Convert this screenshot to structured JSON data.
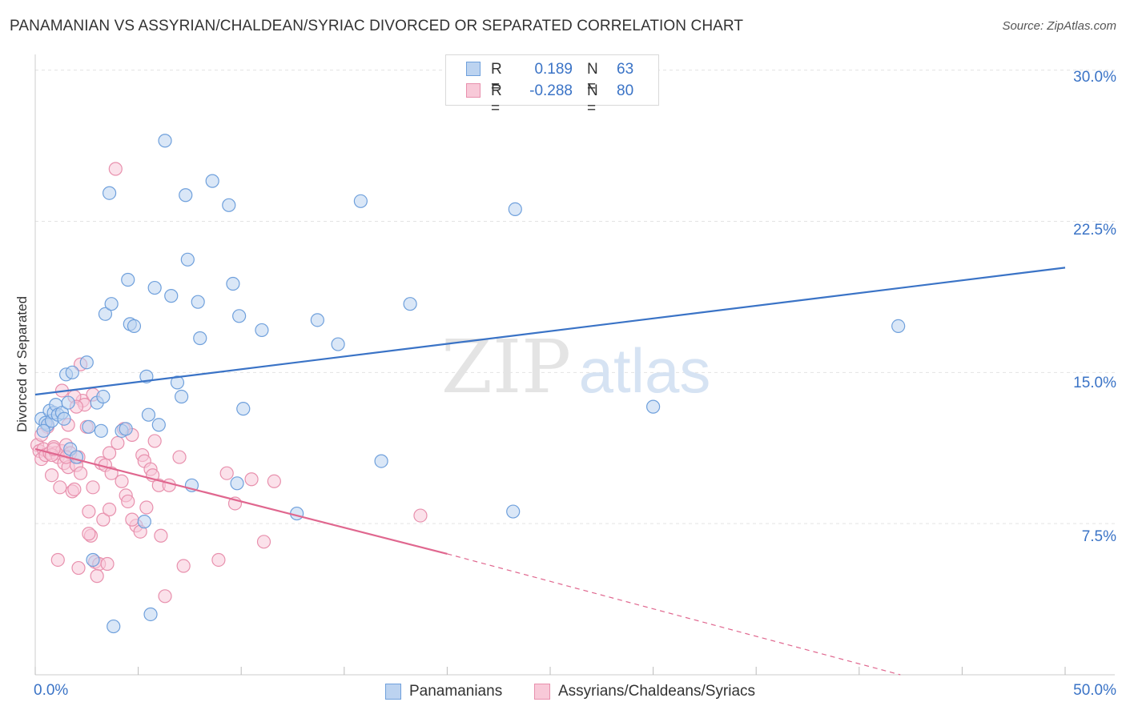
{
  "header": {
    "title": "PANAMANIAN VS ASSYRIAN/CHALDEAN/SYRIAC DIVORCED OR SEPARATED CORRELATION CHART",
    "source": "Source: ZipAtlas.com"
  },
  "stats": [
    {
      "r_label": "R =",
      "r_value": "0.189",
      "n_label": "N =",
      "n_value": "63",
      "color": "#6fa0dc",
      "fill": "#bcd3f0"
    },
    {
      "r_label": "R =",
      "r_value": "-0.288",
      "n_label": "N =",
      "n_value": "80",
      "color": "#e890ad",
      "fill": "#f8c9d8"
    }
  ],
  "legend": {
    "items": [
      {
        "label": "Panamanians",
        "color": "#6fa0dc",
        "fill": "#bcd3f0"
      },
      {
        "label": "Assyrians/Chaldeans/Syriacs",
        "color": "#e890ad",
        "fill": "#f8c9d8"
      }
    ]
  },
  "watermark": {
    "zip": "ZIP",
    "atlas": "atlas"
  },
  "chart_data": {
    "type": "scatter",
    "ylabel": "Divorced or Separated",
    "xlabel": "",
    "x_tick_labels": [
      "0.0%",
      "50.0%"
    ],
    "y_tick_labels": [
      "7.5%",
      "15.0%",
      "22.5%",
      "30.0%"
    ],
    "y_ticks": [
      7.5,
      15.0,
      22.5,
      30.0
    ],
    "xlim": [
      0,
      50
    ],
    "ylim": [
      0,
      30.7
    ],
    "grid": true,
    "series": [
      {
        "name": "Panamanians",
        "color": "#3a73c6",
        "point_fill": "#bcd3f0",
        "point_stroke": "#6fa0dc",
        "trend": {
          "x": [
            0,
            50
          ],
          "y": [
            13.9,
            20.2
          ]
        },
        "points": [
          [
            0.3,
            12.7
          ],
          [
            0.5,
            12.5
          ],
          [
            0.6,
            12.4
          ],
          [
            0.7,
            13.1
          ],
          [
            0.8,
            12.6
          ],
          [
            0.9,
            13.0
          ],
          [
            1.0,
            13.4
          ],
          [
            1.1,
            12.9
          ],
          [
            1.3,
            13.0
          ],
          [
            1.4,
            12.7
          ],
          [
            1.5,
            14.9
          ],
          [
            1.6,
            13.5
          ],
          [
            1.7,
            11.2
          ],
          [
            1.8,
            15.0
          ],
          [
            2.0,
            10.8
          ],
          [
            2.5,
            15.5
          ],
          [
            2.6,
            12.3
          ],
          [
            2.8,
            5.7
          ],
          [
            3.0,
            13.5
          ],
          [
            3.2,
            12.1
          ],
          [
            3.3,
            13.8
          ],
          [
            3.4,
            17.9
          ],
          [
            3.6,
            23.9
          ],
          [
            3.7,
            18.4
          ],
          [
            3.8,
            2.4
          ],
          [
            4.2,
            12.1
          ],
          [
            4.4,
            12.2
          ],
          [
            4.5,
            19.6
          ],
          [
            4.6,
            17.4
          ],
          [
            4.8,
            17.3
          ],
          [
            5.3,
            7.6
          ],
          [
            5.4,
            14.8
          ],
          [
            5.5,
            12.9
          ],
          [
            5.6,
            3.0
          ],
          [
            5.8,
            19.2
          ],
          [
            6.0,
            12.4
          ],
          [
            6.3,
            26.5
          ],
          [
            6.6,
            18.8
          ],
          [
            6.9,
            14.5
          ],
          [
            7.1,
            13.8
          ],
          [
            7.3,
            23.8
          ],
          [
            7.4,
            20.6
          ],
          [
            7.6,
            9.4
          ],
          [
            7.9,
            18.5
          ],
          [
            8.0,
            16.7
          ],
          [
            8.6,
            24.5
          ],
          [
            9.4,
            23.3
          ],
          [
            9.6,
            19.4
          ],
          [
            9.8,
            9.5
          ],
          [
            9.9,
            17.8
          ],
          [
            10.1,
            13.2
          ],
          [
            11.0,
            17.1
          ],
          [
            12.7,
            8.0
          ],
          [
            13.7,
            17.6
          ],
          [
            14.7,
            16.4
          ],
          [
            15.8,
            23.5
          ],
          [
            16.8,
            10.6
          ],
          [
            18.2,
            18.4
          ],
          [
            23.2,
            8.1
          ],
          [
            23.3,
            23.1
          ],
          [
            30.0,
            13.3
          ],
          [
            41.9,
            17.3
          ],
          [
            0.4,
            12.1
          ]
        ]
      },
      {
        "name": "Assyrians/Chaldeans/Syriacs",
        "color": "#e0678f",
        "point_fill": "#f8c9d8",
        "point_stroke": "#e890ad",
        "trend": {
          "x": [
            0,
            20
          ],
          "y": [
            11.2,
            6.0
          ]
        },
        "trend_dashed": {
          "x": [
            20,
            42
          ],
          "y": [
            6.0,
            0.0
          ]
        },
        "points": [
          [
            0.1,
            11.4
          ],
          [
            0.2,
            11.1
          ],
          [
            0.3,
            10.7
          ],
          [
            0.4,
            11.2
          ],
          [
            0.5,
            10.9
          ],
          [
            0.6,
            12.3
          ],
          [
            0.7,
            11.0
          ],
          [
            0.8,
            9.9
          ],
          [
            0.9,
            11.3
          ],
          [
            1.0,
            11.0
          ],
          [
            1.1,
            10.8
          ],
          [
            1.2,
            9.3
          ],
          [
            1.3,
            11.1
          ],
          [
            1.4,
            10.5
          ],
          [
            1.5,
            11.4
          ],
          [
            1.6,
            10.3
          ],
          [
            1.7,
            11.0
          ],
          [
            1.8,
            9.1
          ],
          [
            1.9,
            9.2
          ],
          [
            2.0,
            10.4
          ],
          [
            2.1,
            10.8
          ],
          [
            2.2,
            10.0
          ],
          [
            2.3,
            13.6
          ],
          [
            2.4,
            13.4
          ],
          [
            2.5,
            12.3
          ],
          [
            2.6,
            8.1
          ],
          [
            2.7,
            6.9
          ],
          [
            2.8,
            9.3
          ],
          [
            2.9,
            5.6
          ],
          [
            3.1,
            5.5
          ],
          [
            3.2,
            10.5
          ],
          [
            3.3,
            7.7
          ],
          [
            3.4,
            10.4
          ],
          [
            3.6,
            8.2
          ],
          [
            3.7,
            10.0
          ],
          [
            3.9,
            25.1
          ],
          [
            4.0,
            11.5
          ],
          [
            4.2,
            9.6
          ],
          [
            4.3,
            12.2
          ],
          [
            4.4,
            8.9
          ],
          [
            4.5,
            8.6
          ],
          [
            4.7,
            11.9
          ],
          [
            4.9,
            7.4
          ],
          [
            5.1,
            7.1
          ],
          [
            5.2,
            10.9
          ],
          [
            5.3,
            10.6
          ],
          [
            5.4,
            8.3
          ],
          [
            5.6,
            10.2
          ],
          [
            5.7,
            9.9
          ],
          [
            5.8,
            11.6
          ],
          [
            6.0,
            9.4
          ],
          [
            6.3,
            3.9
          ],
          [
            6.5,
            9.4
          ],
          [
            7.0,
            10.8
          ],
          [
            7.2,
            5.4
          ],
          [
            8.9,
            5.7
          ],
          [
            9.3,
            10.0
          ],
          [
            9.7,
            8.5
          ],
          [
            10.5,
            9.7
          ],
          [
            11.1,
            6.6
          ],
          [
            11.6,
            9.6
          ],
          [
            18.7,
            7.9
          ],
          [
            0.3,
            11.9
          ],
          [
            0.8,
            10.9
          ],
          [
            1.3,
            14.1
          ],
          [
            1.6,
            12.4
          ],
          [
            2.2,
            15.4
          ],
          [
            2.8,
            13.9
          ],
          [
            1.9,
            13.8
          ],
          [
            2.0,
            13.3
          ],
          [
            2.6,
            7.0
          ],
          [
            3.0,
            4.9
          ],
          [
            3.5,
            5.5
          ],
          [
            1.1,
            5.7
          ],
          [
            2.1,
            5.3
          ],
          [
            4.7,
            7.7
          ],
          [
            0.9,
            11.2
          ],
          [
            1.5,
            10.8
          ],
          [
            3.6,
            11.0
          ],
          [
            6.1,
            6.9
          ]
        ]
      }
    ]
  }
}
